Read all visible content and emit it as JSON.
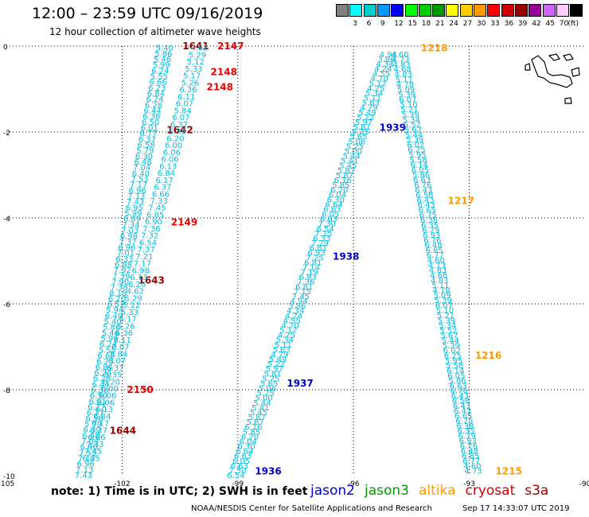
{
  "title": "12:00 – 23:59 UTC 09/16/2019",
  "subtitle": "12 hour collection of altimeter wave heights",
  "colorbar": {
    "unit": "(ft)",
    "steps": [
      {
        "label": "",
        "color": "#808080"
      },
      {
        "label": "3",
        "color": "#00ffff"
      },
      {
        "label": "6",
        "color": "#00cccc"
      },
      {
        "label": "9",
        "color": "#0099ff"
      },
      {
        "label": "12",
        "color": "#0000ff"
      },
      {
        "label": "15",
        "color": "#00ff00"
      },
      {
        "label": "18",
        "color": "#00cc00"
      },
      {
        "label": "21",
        "color": "#009900"
      },
      {
        "label": "24",
        "color": "#ffff00"
      },
      {
        "label": "27",
        "color": "#ffcc00"
      },
      {
        "label": "30",
        "color": "#ff9900"
      },
      {
        "label": "33",
        "color": "#ff0000"
      },
      {
        "label": "36",
        "color": "#cc0000"
      },
      {
        "label": "39",
        "color": "#990000"
      },
      {
        "label": "42",
        "color": "#990099"
      },
      {
        "label": "45",
        "color": "#cc66ff"
      },
      {
        "label": "70",
        "color": "#ffccff"
      },
      {
        "label": "",
        "color": "#000000"
      }
    ]
  },
  "note": "note:  1) Time is in UTC;  2) SWH is in feet",
  "legend": [
    {
      "label": "jason2",
      "color": "#0000cc"
    },
    {
      "label": "jason3",
      "color": "#009900"
    },
    {
      "label": "altika",
      "color": "#ff9900"
    },
    {
      "label": "cryosat",
      "color": "#cc0000"
    },
    {
      "label": "s3a",
      "color": "#990000"
    }
  ],
  "credit": "NOAA/NESDIS Center for Satellite Applications and Research",
  "timestamp": "Sep 17 14:33:07 UTC 2019",
  "colors": {
    "swh": "#00bbdd",
    "jason2": "#0000cc",
    "altika": "#ff9900",
    "cryosat": "#ee0000",
    "s3a": "#990000"
  },
  "chart_data": {
    "type": "scatter",
    "xlim": [
      -105,
      -90
    ],
    "ylim": [
      -10,
      0
    ],
    "x_ticks": [
      "-105",
      "-102",
      "-99",
      "-96",
      "-93",
      "-90"
    ],
    "y_ticks": [
      "0",
      "-2",
      "-4",
      "-6",
      "-8",
      "-10"
    ],
    "grid": true,
    "tracks": [
      {
        "satellite": "s3a",
        "start": [
          -100.9,
          -0.05
        ],
        "end": [
          -103.0,
          -10
        ],
        "count": 76,
        "values": [
          "5.40",
          "5.86",
          "5.46",
          "5.99",
          "6.24",
          "5.55",
          "6.66",
          "6.23",
          "6.84",
          "6.24",
          "6.28",
          "6.44",
          "6.38",
          "6.50",
          "6.01",
          "6.77",
          "6.37",
          "6.58",
          "5.79",
          "6.30",
          "6.48",
          "7.04",
          "6.40",
          "7.53",
          "7.17",
          "6.96",
          "7.13",
          "7.43",
          "6.95",
          "5.99",
          "6.89",
          "7.34",
          "7.03",
          "6.98",
          "7.37",
          "6.96",
          "7.01",
          "6.33",
          "6.88",
          "7.92",
          "7.39",
          "7.00",
          "7.38",
          "8.19",
          "6.20",
          "6.52",
          "5.94",
          "6.49"
        ],
        "labels": [
          {
            "text": "1641",
            "lat": 0.0
          },
          {
            "text": "1642",
            "lat": -1.95
          },
          {
            "text": "1643",
            "lat": -5.45
          },
          {
            "text": "1644",
            "lat": -8.95
          }
        ]
      },
      {
        "satellite": "cryosat",
        "start": [
          -100.0,
          -0.05
        ],
        "end": [
          -102.8,
          -9.6
        ],
        "count": 60,
        "values": [
          "4.62",
          "5.29",
          "5.12",
          "5.33",
          "5.17",
          "5.26",
          "6.36",
          "6.11",
          "6.07",
          "5.84",
          "6.07",
          "6.37",
          "5.35",
          "6.20",
          "6.00",
          "6.06",
          "6.06",
          "6.13",
          "6.84",
          "6.17",
          "6.37",
          "6.66",
          "7.33",
          "7.45",
          "6.85",
          "6.90",
          "7.36",
          "7.32",
          "6.54",
          "7.37",
          "7.21",
          "7.17",
          "6.98",
          "6.13",
          "6.20"
        ],
        "labels": [
          {
            "text": "2147",
            "lat": 0.0
          },
          {
            "text": "2148",
            "lat": -0.6
          },
          {
            "text": "2148",
            "lat": -0.95
          },
          {
            "text": "2149",
            "lat": -4.1
          },
          {
            "text": "2150",
            "lat": -8.0
          }
        ]
      },
      {
        "satellite": "jason2",
        "start": [
          -95.1,
          -0.2
        ],
        "end": [
          -99.05,
          -10
        ],
        "count": 88,
        "values": [
          "4.94",
          "3.86",
          "4.34",
          "4.24",
          "4.55",
          "4.70",
          "5.12",
          "4.25",
          "5.34",
          "5.11",
          "5.63",
          "4.79",
          "5.49",
          "5.22",
          "5.97",
          "5.81",
          "5.25",
          "5.65",
          "5.06",
          "5.25",
          "5.00",
          "5.44",
          "5.41",
          "5.45",
          "5.87",
          "5.87",
          "6.16",
          "5.85",
          "6.20",
          "6.04",
          "6.30",
          "6.64",
          "6.63",
          "6.05",
          "6.63",
          "7.30",
          "6.54",
          "7.15",
          "6.33",
          "7.29",
          "6.81",
          "6.93",
          "7.25",
          "6.81",
          "7.14",
          "7.19",
          "6.93",
          "7.36",
          "6.81",
          "7.15",
          "7.45"
        ],
        "labels": [
          {
            "text": "1939",
            "lat": -1.9
          },
          {
            "text": "1938",
            "lat": -4.9
          },
          {
            "text": "1937",
            "lat": -7.85
          },
          {
            "text": "1936",
            "lat": -9.9
          }
        ]
      },
      {
        "satellite": "altika",
        "start": [
          -94.8,
          -0.2
        ],
        "end": [
          -92.9,
          -9.9
        ],
        "count": 84,
        "values": [
          "4.60",
          "4.73",
          "4.83",
          "4.68",
          "4.83",
          "5.11",
          "4.78",
          "5.09",
          "5.39",
          "6.07",
          "5.10",
          "5.21",
          "5.39",
          "5.34",
          "5.52",
          "5.67",
          "5.44",
          "5.39",
          "6.02",
          "6.25",
          "5.95",
          "5.58",
          "6.14",
          "6.05",
          "5.86",
          "6.63",
          "6.76",
          "6.43",
          "6.58",
          "6.43",
          "6.43",
          "6.65",
          "6.75",
          "6.38",
          "6.35",
          "6.79",
          "6.93",
          "6.76",
          "6.48",
          "6.85",
          "6.77"
        ],
        "labels": [
          {
            "text": "1218",
            "lat": -0.05
          },
          {
            "text": "1217",
            "lat": -3.6
          },
          {
            "text": "1216",
            "lat": -7.2
          },
          {
            "text": "1215",
            "lat": -9.9
          }
        ]
      }
    ]
  }
}
